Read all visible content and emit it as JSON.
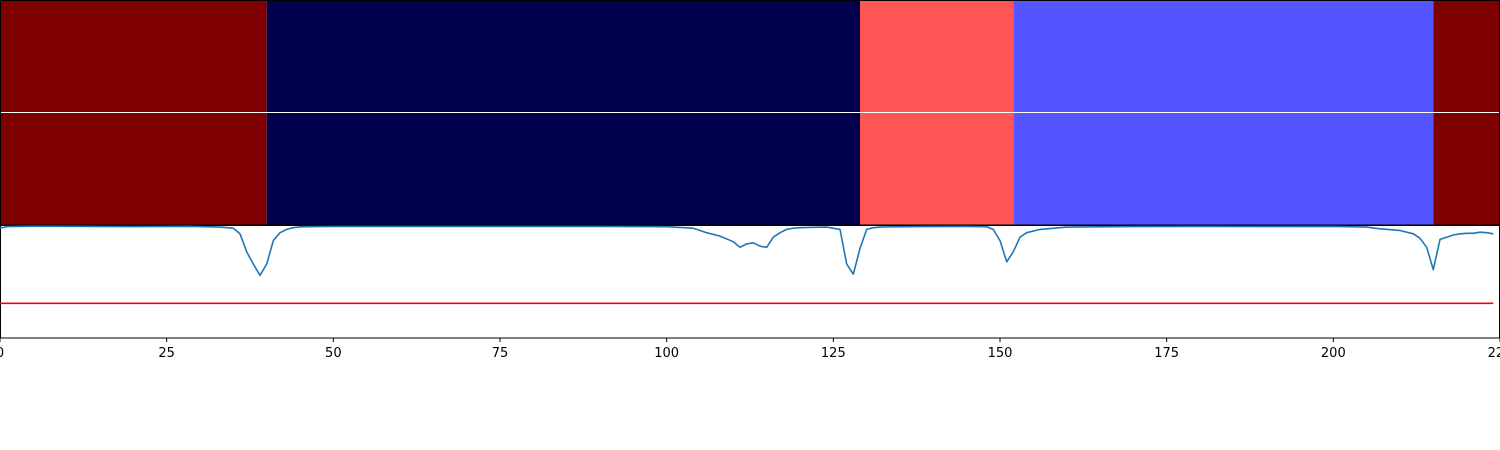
{
  "chart_data": [
    {
      "type": "heatmap",
      "rows": 2,
      "segments": [
        {
          "start": 0,
          "end": 40,
          "color": "#7f0000"
        },
        {
          "start": 40,
          "end": 129,
          "color": "#00004c"
        },
        {
          "start": 129,
          "end": 152,
          "color": "#ff5555"
        },
        {
          "start": 152,
          "end": 215,
          "color": "#5555ff"
        },
        {
          "start": 215,
          "end": 225,
          "color": "#7f0000"
        }
      ],
      "separator_color": "#ffffff",
      "xlim": [
        0,
        225
      ]
    },
    {
      "type": "line",
      "xlim": [
        0,
        225
      ],
      "ylim": [
        0,
        1
      ],
      "series": [
        {
          "color": "#1f77b4",
          "x": [
            0,
            1,
            5,
            10,
            15,
            20,
            25,
            28,
            30,
            33,
            35,
            36,
            37,
            38,
            39,
            40,
            41,
            42,
            43,
            44,
            45,
            48,
            50,
            60,
            70,
            80,
            90,
            100,
            104,
            106,
            108,
            110,
            111,
            112,
            113,
            114,
            115,
            116,
            117,
            118,
            119,
            120,
            122,
            124,
            126,
            127,
            128,
            129,
            130,
            131,
            132,
            134,
            138,
            145,
            148,
            149,
            150,
            151,
            152,
            153,
            154,
            156,
            160,
            170,
            180,
            190,
            200,
            205,
            207,
            210,
            212,
            213,
            214,
            215,
            216,
            217,
            218,
            219,
            220,
            221,
            222,
            223,
            224
          ],
          "y": [
            0.98,
            0.995,
            0.998,
            0.997,
            0.996,
            0.995,
            0.996,
            0.997,
            0.995,
            0.99,
            0.98,
            0.93,
            0.77,
            0.66,
            0.56,
            0.66,
            0.87,
            0.94,
            0.97,
            0.985,
            0.993,
            0.995,
            0.996,
            0.996,
            0.996,
            0.996,
            0.996,
            0.994,
            0.98,
            0.94,
            0.91,
            0.86,
            0.81,
            0.84,
            0.85,
            0.82,
            0.81,
            0.9,
            0.94,
            0.97,
            0.98,
            0.985,
            0.988,
            0.99,
            0.97,
            0.66,
            0.57,
            0.8,
            0.97,
            0.985,
            0.99,
            0.993,
            0.995,
            0.996,
            0.994,
            0.97,
            0.87,
            0.68,
            0.77,
            0.9,
            0.94,
            0.97,
            0.99,
            0.995,
            0.996,
            0.995,
            0.996,
            0.99,
            0.975,
            0.96,
            0.93,
            0.89,
            0.81,
            0.61,
            0.88,
            0.9,
            0.92,
            0.93,
            0.935,
            0.935,
            0.945,
            0.94,
            0.93
          ]
        },
        {
          "color": "#ff0000",
          "x": [
            0,
            224
          ],
          "y": [
            0.31,
            0.31
          ]
        }
      ]
    }
  ],
  "axis": {
    "x_ticks": [
      0,
      25,
      50,
      75,
      100,
      125,
      150,
      175,
      200,
      225
    ]
  }
}
